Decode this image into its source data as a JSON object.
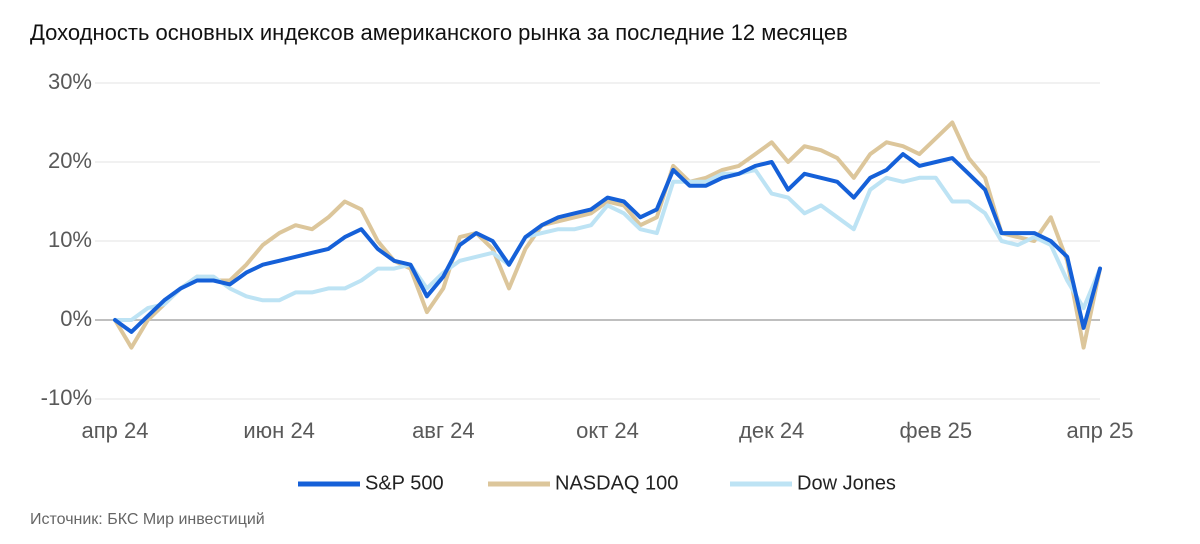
{
  "chart_data": {
    "type": "line",
    "title": "Доходность основных индексов американского рынка за последние 12 месяцев",
    "source": "Источник: БКС Мир инвестиций",
    "categories": [
      "апр 24",
      null,
      null,
      null,
      null,
      null,
      null,
      null,
      null,
      null,
      "июн 24",
      null,
      null,
      null,
      null,
      null,
      null,
      null,
      null,
      null,
      "авг 24",
      null,
      null,
      null,
      null,
      null,
      null,
      null,
      null,
      null,
      "окт 24",
      null,
      null,
      null,
      null,
      null,
      null,
      null,
      null,
      null,
      "дек 24",
      null,
      null,
      null,
      null,
      null,
      null,
      null,
      null,
      null,
      "фев 25",
      null,
      null,
      null,
      null,
      null,
      null,
      null,
      null,
      null,
      "апр 25"
    ],
    "series": [
      {
        "name": "S&P 500",
        "color": "#1560d8",
        "values": [
          0,
          -1.5,
          0.5,
          2.5,
          4,
          5,
          5,
          4.5,
          6,
          7,
          7.5,
          8,
          8.5,
          9,
          10.5,
          11.5,
          9,
          7.5,
          7,
          3,
          5.5,
          9.5,
          11,
          10,
          7,
          10.5,
          12,
          13,
          13.5,
          14,
          15.5,
          15,
          13,
          14,
          19,
          17,
          17,
          18,
          18.5,
          19.5,
          20,
          16.5,
          18.5,
          18,
          17.5,
          15.5,
          18,
          19,
          21,
          19.5,
          20,
          20.5,
          18.5,
          16.5,
          11,
          11,
          11,
          10,
          8,
          -1,
          6.5
        ]
      },
      {
        "name": "NASDAQ 100",
        "color": "#dcc69b",
        "values": [
          0,
          -3.5,
          0,
          2,
          4,
          5.5,
          5,
          5,
          7,
          9.5,
          11,
          12,
          11.5,
          13,
          15,
          14,
          10,
          7.5,
          6.5,
          1,
          4,
          10.5,
          11,
          9,
          4,
          9,
          12,
          12.5,
          13,
          13.5,
          15,
          14.5,
          12,
          13,
          19.5,
          17.5,
          18,
          19,
          19.5,
          21,
          22.5,
          20,
          22,
          21.5,
          20.5,
          18,
          21,
          22.5,
          22,
          21,
          23,
          25,
          20.5,
          18,
          11,
          10.5,
          10,
          13,
          7.5,
          -3.5,
          6.5
        ]
      },
      {
        "name": "Dow Jones",
        "color": "#bde3f4",
        "values": [
          0,
          0,
          1.5,
          2,
          4,
          5.5,
          5.5,
          4,
          3,
          2.5,
          2.5,
          3.5,
          3.5,
          4,
          4,
          5,
          6.5,
          6.5,
          7,
          4,
          6,
          7.5,
          8,
          8.5,
          7,
          10.5,
          11,
          11.5,
          11.5,
          12,
          14.5,
          13.5,
          11.5,
          11,
          17.5,
          17.5,
          17.5,
          18.5,
          18.5,
          19,
          16,
          15.5,
          13.5,
          14.5,
          13,
          11.5,
          16.5,
          18,
          17.5,
          18,
          18,
          15,
          15,
          13.5,
          10,
          9.5,
          10.5,
          9.5,
          5,
          1.5,
          6.5
        ]
      }
    ],
    "ylim": [
      -10,
      30
    ],
    "yticks": [
      {
        "value": -10,
        "label": "-10%"
      },
      {
        "value": 0,
        "label": "0%"
      },
      {
        "value": 10,
        "label": "10%"
      },
      {
        "value": 20,
        "label": "20%"
      },
      {
        "value": 30,
        "label": "30%"
      }
    ],
    "grid": true
  }
}
